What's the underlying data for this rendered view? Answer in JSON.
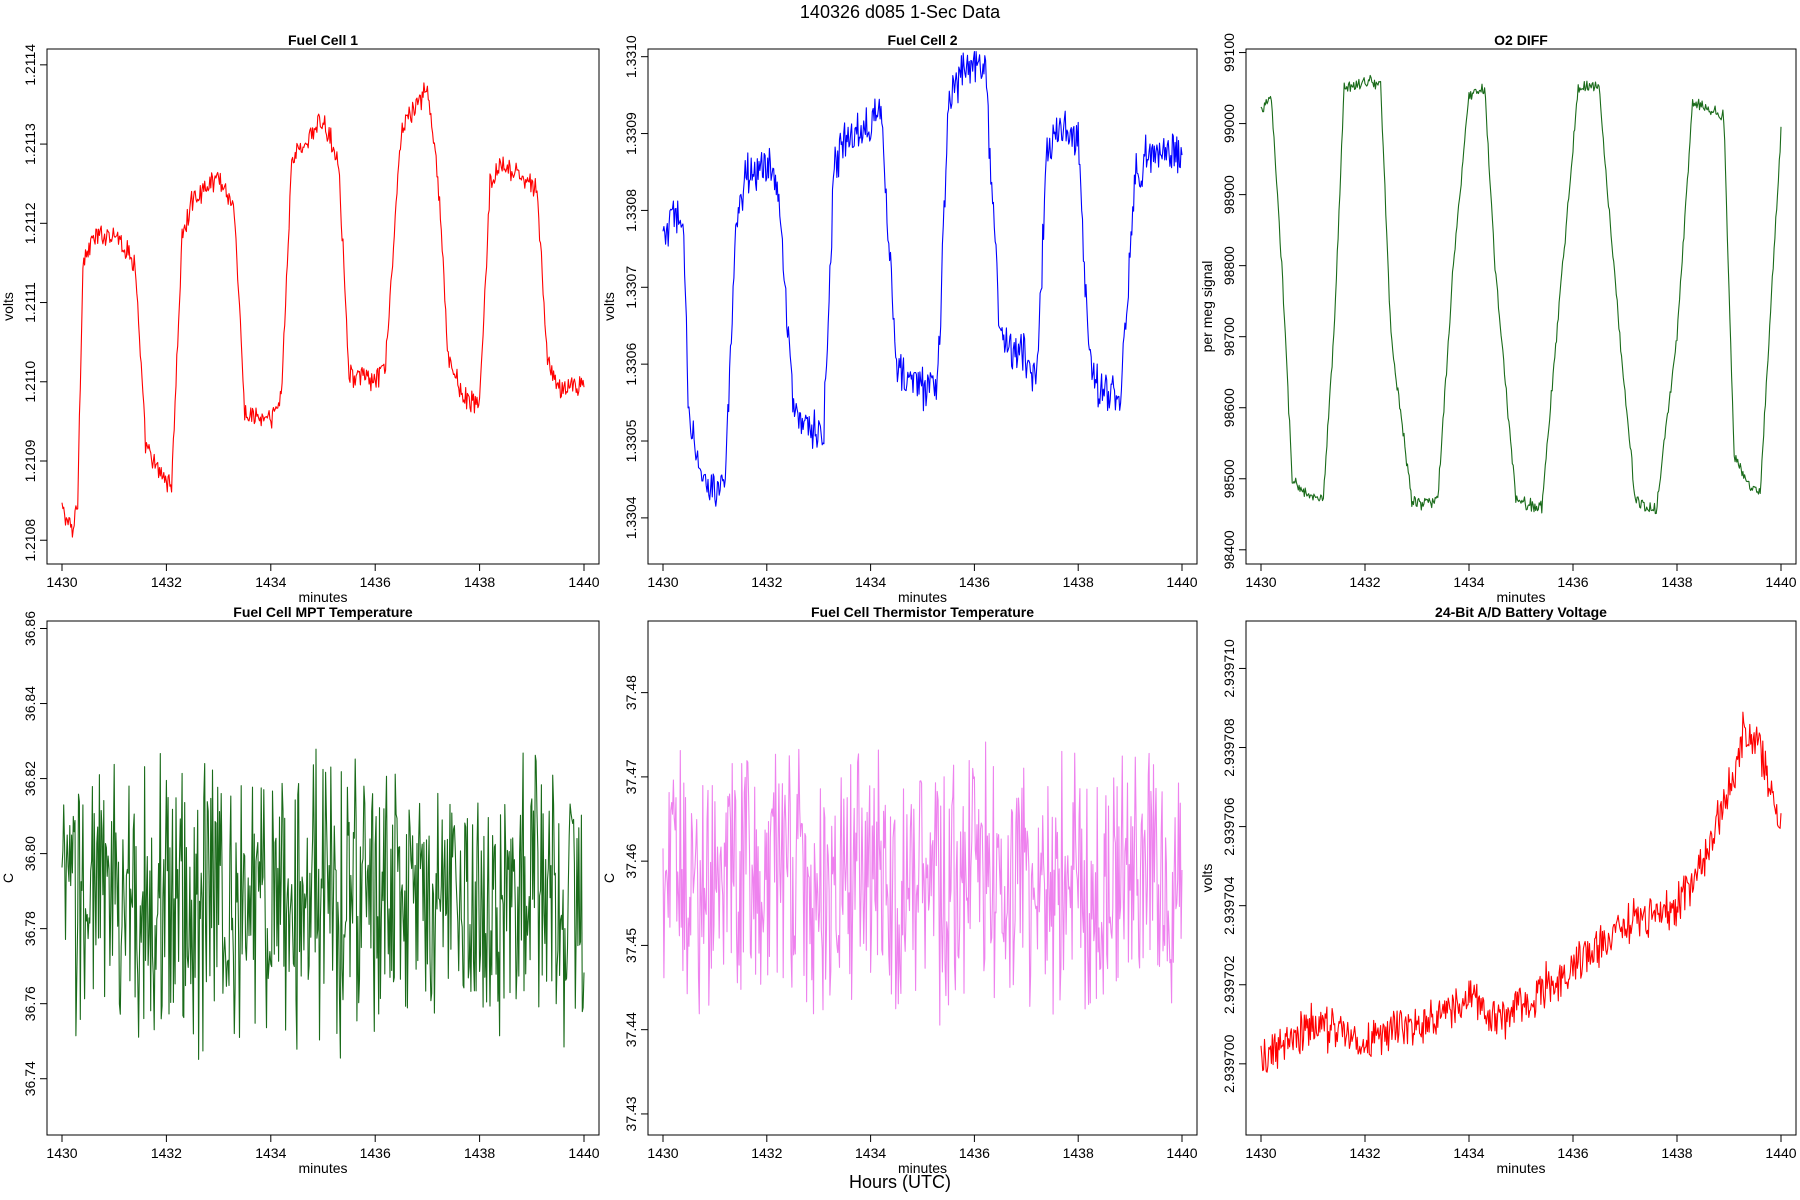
{
  "figure": {
    "title": "140326    d085    1-Sec Data",
    "bottom_label": "Hours (UTC)"
  },
  "chart_data": [
    {
      "type": "line",
      "title": "Fuel Cell 1",
      "xlabel": "minutes",
      "ylabel": "volts",
      "xlim": [
        1430,
        1440
      ],
      "ylim": [
        1.21077,
        1.21142
      ],
      "xticks": [
        1430,
        1432,
        1434,
        1436,
        1438,
        1440
      ],
      "yticks": [
        1.2108,
        1.2109,
        1.211,
        1.2111,
        1.2112,
        1.2113,
        1.2114
      ],
      "ytick_labels": [
        "1.2108",
        "1.2109",
        "1.2110",
        "1.2111",
        "1.2112",
        "1.2113",
        "1.2114"
      ],
      "color": "#ff0000",
      "series": [
        {
          "name": "Fuel Cell 1",
          "x": [
            1430.0,
            1430.2,
            1430.3,
            1430.4,
            1430.6,
            1431.0,
            1431.4,
            1431.6,
            1431.8,
            1432.1,
            1432.3,
            1432.5,
            1433.0,
            1433.3,
            1433.5,
            1434.0,
            1434.2,
            1434.4,
            1435.0,
            1435.3,
            1435.5,
            1436.0,
            1436.2,
            1436.5,
            1437.0,
            1437.2,
            1437.4,
            1437.7,
            1438.0,
            1438.2,
            1438.4,
            1438.8,
            1439.1,
            1439.3,
            1439.5,
            1440.0
          ],
          "y": [
            1.21084,
            1.21081,
            1.21085,
            1.21115,
            1.21118,
            1.21119,
            1.21115,
            1.21092,
            1.21089,
            1.21087,
            1.21118,
            1.21123,
            1.21126,
            1.21122,
            1.21096,
            1.21095,
            1.21098,
            1.21128,
            1.21133,
            1.21128,
            1.21101,
            1.211,
            1.21102,
            1.21132,
            1.21137,
            1.21126,
            1.21103,
            1.21098,
            1.21097,
            1.21125,
            1.21127,
            1.21126,
            1.21124,
            1.21103,
            1.21099,
            1.211
          ]
        }
      ]
    },
    {
      "type": "line",
      "title": "Fuel Cell 2",
      "xlabel": "minutes",
      "ylabel": "volts",
      "xlim": [
        1430,
        1440
      ],
      "ylim": [
        1.33034,
        1.33101
      ],
      "xticks": [
        1430,
        1432,
        1434,
        1436,
        1438,
        1440
      ],
      "yticks": [
        1.3304,
        1.3305,
        1.3306,
        1.3307,
        1.3308,
        1.3309,
        1.331
      ],
      "ytick_labels": [
        "1.3304",
        "1.3305",
        "1.3306",
        "1.3307",
        "1.3308",
        "1.3309",
        "1.3310"
      ],
      "color": "#0000ff",
      "series": [
        {
          "name": "Fuel Cell 2",
          "x": [
            1430.0,
            1430.2,
            1430.4,
            1430.5,
            1430.8,
            1431.2,
            1431.4,
            1431.6,
            1432.0,
            1432.2,
            1432.5,
            1432.9,
            1433.1,
            1433.3,
            1433.5,
            1434.0,
            1434.2,
            1434.5,
            1435.0,
            1435.3,
            1435.5,
            1435.8,
            1436.2,
            1436.5,
            1437.0,
            1437.2,
            1437.4,
            1437.7,
            1438.0,
            1438.2,
            1438.4,
            1438.8,
            1439.1,
            1439.3,
            1439.6,
            1440.0
          ],
          "y": [
            1.33076,
            1.33079,
            1.33078,
            1.33052,
            1.33044,
            1.33045,
            1.33076,
            1.33085,
            1.33086,
            1.33084,
            1.33055,
            1.33051,
            1.33052,
            1.33085,
            1.33089,
            1.33092,
            1.33094,
            1.33059,
            1.33057,
            1.33058,
            1.33094,
            1.33099,
            1.331,
            1.33063,
            1.33061,
            1.33058,
            1.33088,
            1.33091,
            1.33089,
            1.33061,
            1.33057,
            1.33055,
            1.33084,
            1.33087,
            1.33088,
            1.33087
          ]
        }
      ]
    },
    {
      "type": "line",
      "title": "O2 DIFF",
      "xlabel": "minutes",
      "ylabel": "per meg signal",
      "xlim": [
        1430,
        1440
      ],
      "ylim": [
        98380,
        99105
      ],
      "xticks": [
        1430,
        1432,
        1434,
        1436,
        1438,
        1440
      ],
      "yticks": [
        98400,
        98500,
        98600,
        98700,
        98800,
        98900,
        99000,
        99100
      ],
      "ytick_labels": [
        "98400",
        "98500",
        "98600",
        "98700",
        "98800",
        "98900",
        "99000",
        "99100"
      ],
      "color": "#1a6b1a",
      "series": [
        {
          "name": "O2 DIFF",
          "x": [
            1430.0,
            1430.2,
            1430.4,
            1430.6,
            1430.9,
            1431.2,
            1431.4,
            1431.6,
            1432.0,
            1432.3,
            1432.5,
            1432.9,
            1433.1,
            1433.4,
            1433.7,
            1434.0,
            1434.3,
            1434.5,
            1434.9,
            1435.1,
            1435.4,
            1435.8,
            1436.1,
            1436.3,
            1436.5,
            1436.9,
            1437.2,
            1437.4,
            1437.6,
            1438.0,
            1438.3,
            1438.5,
            1438.9,
            1439.1,
            1439.4,
            1439.6,
            1440.0
          ],
          "y": [
            99020,
            99035,
            98800,
            98500,
            98475,
            98470,
            98700,
            99050,
            99060,
            99055,
            98700,
            98470,
            98465,
            98470,
            98800,
            99040,
            99050,
            98800,
            98470,
            98465,
            98460,
            98800,
            99050,
            99055,
            99050,
            98700,
            98470,
            98460,
            98455,
            98700,
            99030,
            99025,
            99010,
            98530,
            98490,
            98480,
            98990
          ]
        }
      ]
    },
    {
      "type": "line",
      "title": "Fuel Cell MPT Temperature",
      "xlabel": "minutes",
      "ylabel": "C",
      "xlim": [
        1430,
        1440
      ],
      "ylim": [
        36.725,
        36.862
      ],
      "xticks": [
        1430,
        1432,
        1434,
        1436,
        1438,
        1440
      ],
      "yticks": [
        36.74,
        36.76,
        36.78,
        36.8,
        36.82,
        36.84,
        36.86
      ],
      "ytick_labels": [
        "36.74",
        "36.76",
        "36.78",
        "36.80",
        "36.82",
        "36.84",
        "36.86"
      ],
      "color": "#1a6b1a",
      "series": [
        {
          "name": "Fuel Cell MPT Temperature",
          "x": [
            1430.0,
            1430.5,
            1431.0,
            1431.5,
            1432.0,
            1432.5,
            1433.0,
            1433.5,
            1434.0,
            1434.5,
            1435.0,
            1435.5,
            1436.0,
            1436.5,
            1437.0,
            1437.5,
            1438.0,
            1438.5,
            1439.0,
            1439.5,
            1440.0
          ],
          "y": [
            36.785,
            36.79,
            36.788,
            36.785,
            36.792,
            36.784,
            36.789,
            36.786,
            36.79,
            36.785,
            36.788,
            36.787,
            36.79,
            36.786,
            36.785,
            36.788,
            36.784,
            36.787,
            36.789,
            36.785,
            36.786
          ]
        }
      ]
    },
    {
      "type": "line",
      "title": "Fuel Cell Thermistor Temperature",
      "xlabel": "minutes",
      "ylabel": "C",
      "xlim": [
        1430,
        1440
      ],
      "ylim": [
        37.4275,
        37.4885
      ],
      "xticks": [
        1430,
        1432,
        1434,
        1436,
        1438,
        1440
      ],
      "yticks": [
        37.43,
        37.44,
        37.45,
        37.46,
        37.47,
        37.48
      ],
      "ytick_labels": [
        "37.43",
        "37.44",
        "37.45",
        "37.46",
        "37.47",
        "37.48"
      ],
      "color": "#ee82ee",
      "series": [
        {
          "name": "Fuel Cell Thermistor Temperature",
          "x": [
            1430.0,
            1430.5,
            1431.0,
            1431.5,
            1432.0,
            1432.5,
            1433.0,
            1433.5,
            1434.0,
            1434.5,
            1435.0,
            1435.5,
            1436.0,
            1436.5,
            1437.0,
            1437.5,
            1438.0,
            1438.5,
            1439.0,
            1439.5,
            1440.0
          ],
          "y": [
            37.458,
            37.459,
            37.457,
            37.458,
            37.459,
            37.458,
            37.457,
            37.458,
            37.459,
            37.457,
            37.458,
            37.457,
            37.459,
            37.458,
            37.458,
            37.457,
            37.458,
            37.458,
            37.457,
            37.458,
            37.458
          ]
        }
      ]
    },
    {
      "type": "line",
      "title": "24-Bit A/D Battery Voltage",
      "xlabel": "minutes",
      "ylabel": "volts",
      "xlim": [
        1430,
        1440
      ],
      "ylim": [
        2.9396982,
        2.9397112
      ],
      "xticks": [
        1430,
        1432,
        1434,
        1436,
        1438,
        1440
      ],
      "yticks": [
        2.9397,
        2.939702,
        2.939704,
        2.939706,
        2.939708,
        2.93971
      ],
      "ytick_labels": [
        "2.939700",
        "2.939702",
        "2.939704",
        "2.939706",
        "2.939708",
        "2.939710"
      ],
      "color": "#ff0000",
      "series": [
        {
          "name": "24-Bit A/D Battery Voltage",
          "x": [
            1430.0,
            1430.5,
            1431.0,
            1431.5,
            1432.0,
            1432.5,
            1433.0,
            1433.5,
            1434.0,
            1434.5,
            1435.0,
            1435.5,
            1436.0,
            1436.5,
            1437.0,
            1437.5,
            1438.0,
            1438.5,
            1439.0,
            1439.3,
            1439.6,
            1440.0
          ],
          "y": [
            2.9397,
            2.9397005,
            2.939701,
            2.9397008,
            2.9397005,
            2.9397008,
            2.939701,
            2.9397012,
            2.9397018,
            2.939701,
            2.9397015,
            2.939702,
            2.9397025,
            2.939703,
            2.9397035,
            2.9397038,
            2.939704,
            2.939705,
            2.939707,
            2.9397085,
            2.939708,
            2.939706
          ]
        }
      ]
    }
  ]
}
